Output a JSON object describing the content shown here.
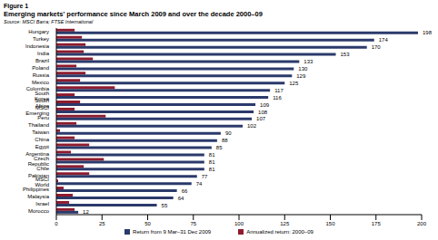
{
  "figure_label": "Figure 1",
  "chart_data": {
    "type": "bar",
    "title": "Emerging markets' performance since March 2009 and over the decade 2000–09",
    "subtitle": "Source: MSCI Barra; FTSE International",
    "orientation": "horizontal",
    "grid": false,
    "legend": "bottom",
    "categories": [
      "Hungary",
      "Turkey",
      "Indonesia",
      "India",
      "Brazil",
      "Poland",
      "Russia",
      "Mexico",
      "Colombia",
      "South Korea",
      "South Africa",
      "MSCI Emerging",
      "Peru",
      "Thailand",
      "Taiwan",
      "China",
      "Egypt",
      "Argentina",
      "Czech Republic",
      "Chile",
      "Pakistan",
      "MSCI World",
      "Philippines",
      "Malaysia",
      "Israel",
      "Morocco"
    ],
    "series": [
      {
        "name": "Return from 9 Mar–31 Dec 2009",
        "color": "#2b3a6b",
        "data_labels": true,
        "values": [
          198,
          174,
          170,
          153,
          133,
          130,
          129,
          125,
          117,
          116,
          109,
          108,
          107,
          102,
          90,
          88,
          85,
          81,
          81,
          81,
          77,
          74,
          66,
          64,
          55,
          12
        ]
      },
      {
        "name": "Annualized return: 2000–09",
        "color": "#8e1b2e",
        "values": [
          10,
          14,
          16,
          15,
          20,
          11,
          16,
          13,
          32,
          10,
          13,
          10,
          27,
          11,
          2,
          10,
          18,
          8,
          26,
          15,
          18,
          1,
          4,
          9,
          7,
          10
        ]
      }
    ],
    "xlim": [
      0,
      200
    ],
    "xticks": [
      0,
      25,
      50,
      75,
      100,
      125,
      150,
      175,
      200
    ]
  }
}
